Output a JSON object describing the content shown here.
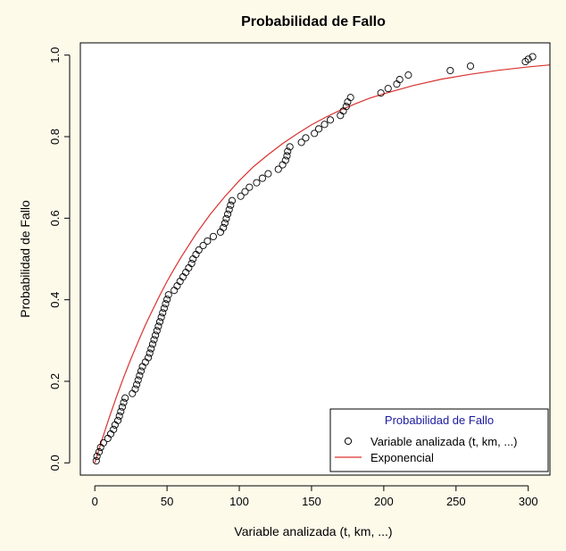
{
  "chart_data": {
    "type": "scatter",
    "title": "Probabilidad de Fallo",
    "xlabel": "Variable analizada (t, km, ...)",
    "ylabel": "Probabilidad de Fallo",
    "xlim": [
      -10,
      315
    ],
    "ylim": [
      -0.03,
      1.03
    ],
    "xticks": [
      0,
      50,
      100,
      150,
      200,
      250,
      300
    ],
    "yticks": [
      0.0,
      0.2,
      0.4,
      0.6,
      0.8,
      1.0
    ],
    "xtick_labels": [
      "0",
      "50",
      "100",
      "150",
      "200",
      "250",
      "300"
    ],
    "ytick_labels": [
      "0.0",
      "0.2",
      "0.4",
      "0.6",
      "0.8",
      "1.0"
    ],
    "grid": false,
    "legend": {
      "title": "Probabilidad de Fallo",
      "position": "bottom-right",
      "entries": [
        {
          "label": "Variable analizada (t, km, ...)",
          "marker": "open-circle",
          "color": "#000000"
        },
        {
          "label": "Exponencial",
          "marker": "line",
          "color": "#d9322f"
        }
      ]
    },
    "series": [
      {
        "name": "Variable analizada (t, km, ...)",
        "kind": "points",
        "color": "#000000",
        "x": [
          1,
          1.5,
          3,
          4,
          6,
          9,
          11,
          13,
          14,
          16,
          17,
          18,
          19,
          20,
          21,
          26,
          28,
          29,
          30,
          31,
          32,
          33,
          35,
          37,
          38,
          39,
          40,
          41,
          42,
          43,
          44,
          45,
          46,
          47,
          48,
          49,
          50,
          51,
          55,
          57,
          59,
          61,
          63,
          65,
          67,
          68,
          70,
          72,
          75,
          78,
          82,
          87,
          89,
          90,
          91,
          92,
          93,
          94,
          95,
          101,
          104,
          107,
          112,
          116,
          120,
          127,
          130,
          132,
          133,
          133.5,
          135,
          143,
          146,
          152,
          155,
          159,
          163,
          170,
          172,
          174,
          175,
          177,
          198,
          203,
          209,
          211,
          217,
          246,
          260,
          298,
          300,
          303
        ],
        "y": [
          0.005,
          0.016,
          0.027,
          0.038,
          0.049,
          0.06,
          0.071,
          0.082,
          0.093,
          0.104,
          0.115,
          0.126,
          0.137,
          0.148,
          0.159,
          0.17,
          0.181,
          0.192,
          0.203,
          0.214,
          0.225,
          0.236,
          0.247,
          0.258,
          0.269,
          0.28,
          0.291,
          0.302,
          0.313,
          0.324,
          0.335,
          0.346,
          0.357,
          0.368,
          0.379,
          0.39,
          0.401,
          0.412,
          0.423,
          0.434,
          0.445,
          0.456,
          0.467,
          0.478,
          0.489,
          0.5,
          0.511,
          0.522,
          0.533,
          0.544,
          0.555,
          0.566,
          0.577,
          0.588,
          0.599,
          0.61,
          0.621,
          0.632,
          0.643,
          0.654,
          0.665,
          0.676,
          0.687,
          0.698,
          0.709,
          0.72,
          0.731,
          0.742,
          0.753,
          0.764,
          0.775,
          0.786,
          0.797,
          0.808,
          0.819,
          0.83,
          0.841,
          0.852,
          0.863,
          0.874,
          0.885,
          0.896,
          0.907,
          0.918,
          0.929,
          0.94,
          0.951,
          0.962,
          0.973,
          0.984,
          0.99,
          0.996
        ]
      },
      {
        "name": "Exponencial",
        "kind": "line",
        "color": "#d9322f",
        "function": "1 - exp(-x / 85)",
        "x": [
          0,
          5,
          10,
          15,
          20,
          25,
          30,
          35,
          40,
          45,
          50,
          55,
          60,
          70,
          80,
          90,
          100,
          110,
          120,
          130,
          140,
          150,
          160,
          170,
          180,
          190,
          200,
          220,
          240,
          260,
          280,
          300,
          315
        ],
        "y": [
          0.0,
          0.057,
          0.111,
          0.162,
          0.21,
          0.255,
          0.297,
          0.338,
          0.375,
          0.411,
          0.445,
          0.476,
          0.506,
          0.561,
          0.61,
          0.653,
          0.692,
          0.727,
          0.756,
          0.783,
          0.807,
          0.829,
          0.848,
          0.865,
          0.88,
          0.894,
          0.905,
          0.925,
          0.941,
          0.953,
          0.963,
          0.971,
          0.976
        ]
      }
    ]
  }
}
